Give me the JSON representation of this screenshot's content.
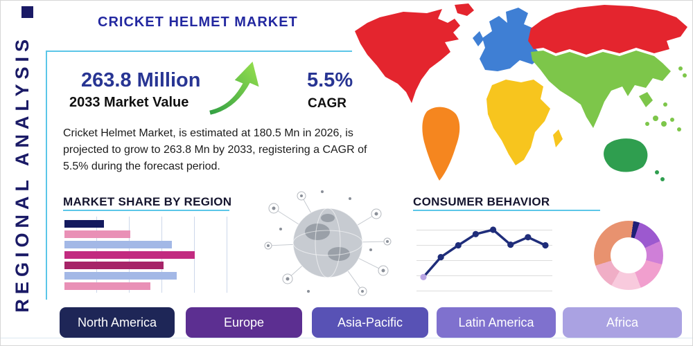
{
  "header": {
    "title": "CRICKET HELMET MARKET",
    "side_label": "REGIONAL ANALYSIS"
  },
  "stats": {
    "value": "263.8 Million",
    "value_caption": "2033 Market Value",
    "cagr": "5.5%",
    "cagr_caption": "CAGR",
    "description": "Cricket Helmet Market, is estimated at 180.5 Mn in 2026, is projected to grow to 263.8 Mn by 2033, registering a CAGR of 5.5% during the forecast period."
  },
  "sections": {
    "market_share": "MARKET SHARE BY REGION",
    "consumer_behavior": "CONSUMER BEHAVIOR"
  },
  "legend": [
    {
      "label": "North America",
      "color": "#1e2657"
    },
    {
      "label": "Europe",
      "color": "#5c2f91"
    },
    {
      "label": "Asia-Pacific",
      "color": "#5852b5"
    },
    {
      "label": "Latin America",
      "color": "#7f71ce"
    },
    {
      "label": "Africa",
      "color": "#aaa2e2"
    }
  ],
  "map": {
    "regions": {
      "north_america": "#e4252e",
      "greenland": "#e4252e",
      "south_america": "#f5861f",
      "europe": "#3f7fd4",
      "russia": "#e4252e",
      "africa": "#f7c51e",
      "asia": "#7dc64a",
      "australia": "#2f9e4f"
    }
  },
  "accents": {
    "teal_line": "#5bc6e8",
    "title_navy": "#2328a0",
    "stat_navy": "#283593",
    "arrow_green_light": "#9be24e",
    "arrow_green_dark": "#2f9e43"
  },
  "chart_data": [
    {
      "type": "bar",
      "title": "Market Share by Region",
      "orientation": "horizontal",
      "note": "no numeric labels visible; bar lengths estimated as % of plot width",
      "values": [
        24,
        40,
        65,
        79,
        60,
        68,
        52
      ],
      "colors": [
        "#141a5e",
        "#e990b6",
        "#a3b8e6",
        "#c22b80",
        "#a62468",
        "#a3b8e6",
        "#e990b6"
      ],
      "grid": "vertical"
    },
    {
      "type": "line",
      "title": "Consumer Behavior",
      "note": "no axis labels visible; values estimated on 0-100 scale",
      "x": [
        1,
        2,
        3,
        4,
        5,
        6,
        7,
        8
      ],
      "values": [
        14,
        46,
        65,
        83,
        90,
        66,
        78,
        65
      ],
      "ylim": [
        0,
        100
      ],
      "color": "#1f2d7a",
      "first_point_color": "#b9a5e3",
      "grid": "horizontal"
    },
    {
      "type": "pie",
      "donut": true,
      "title": "Regional distribution donut",
      "note": "no slice labels visible; shares estimated",
      "start_angle": 8,
      "values": [
        3,
        13,
        11,
        15,
        14,
        12,
        32
      ],
      "colors": [
        "#1f1f77",
        "#9c59cf",
        "#cf7fd8",
        "#f19fce",
        "#f8cadd",
        "#f0aec6",
        "#e8926f"
      ]
    }
  ]
}
